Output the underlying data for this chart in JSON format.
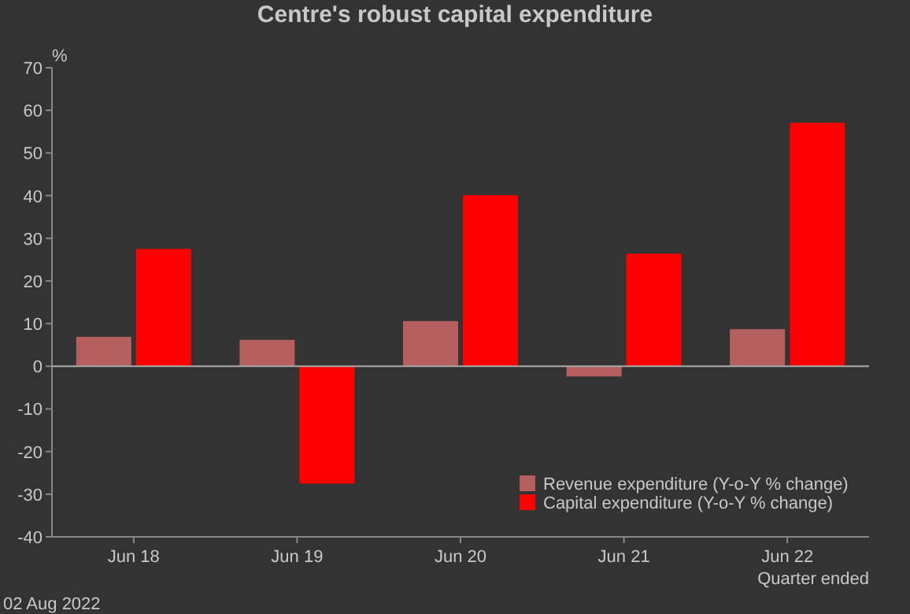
{
  "chart_data": {
    "type": "bar",
    "title": "Centre's robust capital expenditure",
    "ylabel": "%",
    "xlabel": "Quarter ended",
    "categories": [
      "Jun 18",
      "Jun 19",
      "Jun 20",
      "Jun 21",
      "Jun 22"
    ],
    "series": [
      {
        "name": "Revenue expenditure (Y-o-Y % change)",
        "color": "#b55f5f",
        "values": [
          6.9,
          6.2,
          10.6,
          -2.4,
          8.7
        ]
      },
      {
        "name": "Capital expenditure (Y-o-Y % change)",
        "color": "#ff0000",
        "values": [
          27.5,
          -27.5,
          40.1,
          26.4,
          57.1
        ]
      }
    ],
    "ylim": [
      -40,
      70
    ],
    "yticks": [
      -40,
      -30,
      -20,
      -10,
      0,
      10,
      20,
      30,
      40,
      50,
      60,
      70
    ],
    "legend": "bottom right",
    "annotations": [
      "02 Aug 2022"
    ]
  }
}
